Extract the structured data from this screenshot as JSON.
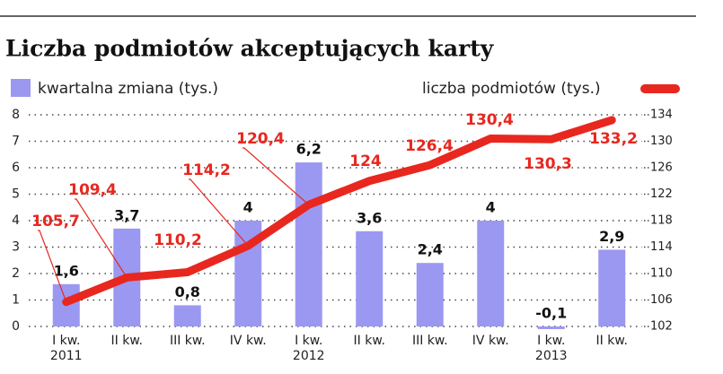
{
  "chart_data": {
    "type": "bar-line",
    "title": "Liczba podmiotów akceptujących karty",
    "categories": [
      "I kw.\n2011",
      "II kw.",
      "III kw.",
      "IV kw.",
      "I kw.\n2012",
      "II kw.",
      "III kw.",
      "IV kw.",
      "I kw.\n2013",
      "II kw."
    ],
    "series": [
      {
        "name": "kwartalna zmiana (tys.)",
        "color": "#9b98f2",
        "type": "bar",
        "values": [
          1.6,
          3.7,
          0.8,
          4,
          6.2,
          3.6,
          2.4,
          4,
          -0.1,
          2.9
        ],
        "value_labels": [
          "1,6",
          "3,7",
          "0,8",
          "4",
          "6,2",
          "3,6",
          "2,4",
          "4",
          "-0,1",
          "2,9"
        ]
      },
      {
        "name": "liczba podmiotów (tys.)",
        "color": "#e8271f",
        "type": "line",
        "axis": "y2",
        "values": [
          105.7,
          109.4,
          110.2,
          114.2,
          120.4,
          124,
          126.4,
          130.4,
          130.3,
          133.2
        ],
        "value_labels": [
          "105,7",
          "109,4",
          "110,2",
          "114,2",
          "120,4",
          "124",
          "126,4",
          "130,4",
          "130,3",
          "133,2"
        ]
      }
    ],
    "ylim": [
      0,
      8
    ],
    "yticks": [
      0,
      1,
      2,
      3,
      4,
      5,
      6,
      7,
      8
    ],
    "y2lim": [
      102,
      134
    ],
    "y2ticks": [
      102,
      106,
      110,
      114,
      118,
      122,
      126,
      130,
      134
    ],
    "grid": true
  }
}
